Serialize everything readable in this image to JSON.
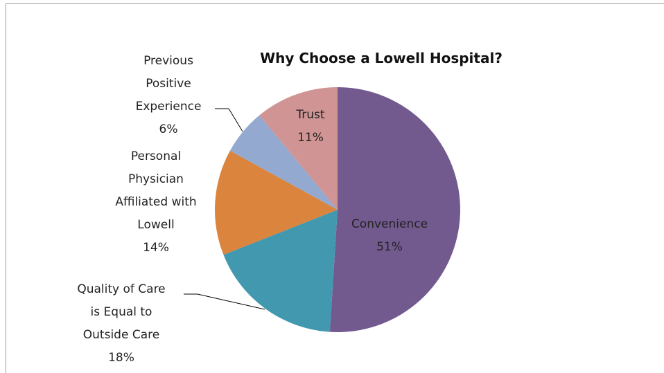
{
  "chart_data": {
    "type": "pie",
    "title": "Why Choose a Lowell Hospital?",
    "categories": [
      "Convenience",
      "Quality of Care is Equal to Outside Care",
      "Personal Physician Affiliated with Lowell",
      "Previous Positive Experience",
      "Trust"
    ],
    "values": [
      51,
      18,
      14,
      6,
      11
    ],
    "value_labels": [
      "51%",
      "18%",
      "14%",
      "6%",
      "11%"
    ],
    "colors": [
      "#725a8f",
      "#4198af",
      "#db843d",
      "#93a9cf",
      "#d09494"
    ]
  }
}
